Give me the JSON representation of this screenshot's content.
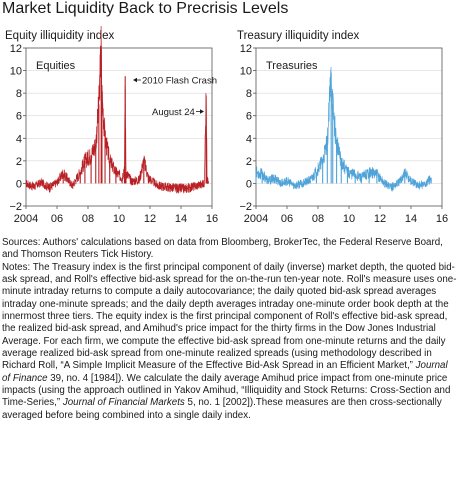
{
  "title": "Market Liquidity Back to Precrisis Levels",
  "panels": [
    {
      "subtitle": "Equity illiquidity index",
      "legend": "Equities"
    },
    {
      "subtitle": "Treasury illiquidity index",
      "legend": "Treasuries"
    }
  ],
  "annotations": {
    "flash_crash": "2010 Flash Crash",
    "august24": "August 24"
  },
  "colors": {
    "equities": "#b82025",
    "treasuries": "#4fa3d9",
    "gridline": "#d9d9d9",
    "axis": "#555555"
  },
  "chart_data": [
    {
      "type": "line",
      "title": "Equity illiquidity index",
      "legend": "Equities",
      "xlim": [
        2004,
        2016
      ],
      "ylim": [
        -2,
        12
      ],
      "x_ticks": [
        "2004",
        "06",
        "08",
        "10",
        "12",
        "14",
        "16"
      ],
      "y_ticks": [
        "−2",
        "0",
        "2",
        "4",
        "6",
        "8",
        "10",
        "12"
      ],
      "series": [
        {
          "x": [
            2004.0,
            2004.5,
            2005.0,
            2005.5,
            2006.0,
            2006.4,
            2007.0,
            2007.5,
            2007.8,
            2008.2,
            2008.5,
            2008.7,
            2008.85,
            2008.9,
            2009.1,
            2009.4,
            2009.8,
            2010.2,
            2010.35,
            2010.4,
            2010.45,
            2010.8,
            2011.3,
            2011.6,
            2011.9,
            2012.5,
            2013.0,
            2013.5,
            2014.0,
            2014.5,
            2015.0,
            2015.5,
            2015.62,
            2015.65,
            2015.68,
            2015.8
          ],
          "values": [
            0.0,
            -0.3,
            0.1,
            -0.4,
            0.1,
            0.9,
            -0.2,
            1.0,
            2.0,
            2.5,
            3.5,
            7.0,
            12.2,
            8.0,
            4.0,
            2.0,
            1.0,
            0.5,
            1.5,
            9.5,
            1.0,
            0.2,
            0.3,
            2.0,
            0.5,
            -0.2,
            -0.3,
            -0.4,
            -0.5,
            -0.4,
            -0.2,
            0.0,
            7.8,
            4.0,
            0.3,
            0.0
          ]
        }
      ],
      "annotations": [
        {
          "text": "2010 Flash Crash",
          "x": 2010.4,
          "y": 9.5
        },
        {
          "text": "August 24",
          "x": 2015.65,
          "y": 7.8
        }
      ]
    },
    {
      "type": "line",
      "title": "Treasury illiquidity index",
      "legend": "Treasuries",
      "xlim": [
        2004,
        2016
      ],
      "ylim": [
        -2,
        12
      ],
      "x_ticks": [
        "2004",
        "06",
        "08",
        "10",
        "12",
        "14",
        "16"
      ],
      "y_ticks": [
        "−2",
        "0",
        "2",
        "4",
        "6",
        "8",
        "10",
        "12"
      ],
      "series": [
        {
          "x": [
            2004.0,
            2004.4,
            2004.8,
            2005.2,
            2005.6,
            2006.0,
            2006.5,
            2007.0,
            2007.5,
            2007.9,
            2008.3,
            2008.6,
            2008.85,
            2008.95,
            2009.2,
            2009.5,
            2009.9,
            2010.4,
            2010.8,
            2011.3,
            2011.8,
            2012.3,
            2012.8,
            2013.3,
            2013.6,
            2014.0,
            2014.5,
            2015.0,
            2015.3
          ],
          "values": [
            1.0,
            0.8,
            0.2,
            0.5,
            0.0,
            0.2,
            -0.2,
            0.0,
            0.3,
            1.0,
            2.0,
            3.5,
            9.8,
            7.0,
            3.5,
            2.0,
            1.0,
            0.8,
            0.5,
            1.0,
            0.8,
            0.0,
            -0.3,
            0.2,
            1.0,
            0.2,
            -0.2,
            0.0,
            0.5
          ]
        }
      ]
    }
  ],
  "notes": {
    "sources": "Sources: Authors' calculations based on data from Bloomberg, BrokerTec, the Federal Reserve Board, and Thomson Reuters Tick History.",
    "part1": "Notes: The Treasury index is the first principal component of daily (inverse) market depth, the quoted bid-ask spread, and Roll's effective bid-ask spread for the on-the-run ten-year note. Roll's measure uses one-minute intraday returns to compute a daily autocovariance; the daily quoted bid-ask spread averages intraday one-minute spreads; and the daily depth averages intraday one-minute order book depth at the innermost three tiers. The equity index is the first principal component of Roll's effective bid-ask spread, the realized bid-ask spread, and Amihud's price impact for the thirty firms in the Dow Jones Industrial Average. For each firm, we compute the effective bid-ask spread from one-minute returns and the daily average realized bid-ask spread from one-minute realized spreads (using methodology described in Richard Roll, “A Simple Implicit Measure of the Effective Bid-Ask Spread in an Efficient Market,”",
    "journal1": "Journal of Finance",
    "part2": " 39, no. 4 [1984]). We calculate the daily average Amihud price impact from one-minute price impacts (using the approach outlined in Yakov Amihud, “Illiquidity and Stock Returns: Cross-Section and Time-Series,”",
    "journal2": "Journal of Financial Markets",
    "part3": " 5, no. 1 [2002]).These measures are then cross-sectionally averaged before being combined into a single daily index."
  }
}
